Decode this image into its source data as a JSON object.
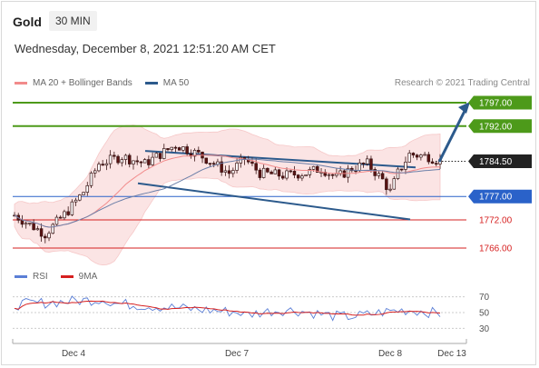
{
  "header": {
    "instrument": "Gold",
    "timeframe": "30 MIN",
    "datetime": "Wednesday, December 8, 2021 12:51:20 AM CET"
  },
  "legend": {
    "main": [
      {
        "label": "MA 20 + Bollinger Bands",
        "color": "#f28b8b"
      },
      {
        "label": "MA 50",
        "color": "#2c5a8c"
      }
    ],
    "rsi": [
      {
        "label": "RSI",
        "color": "#5b7fd6"
      },
      {
        "label": "9MA",
        "color": "#d62020"
      }
    ]
  },
  "credit": "Research © 2021 Trading Central",
  "chart_data": {
    "type": "candlestick",
    "ylim": [
      1760,
      1803
    ],
    "levels": [
      {
        "value": 1797.0,
        "label": "1797.00",
        "kind": "resistance",
        "color": "#4d9a1a",
        "style": "box"
      },
      {
        "value": 1792.0,
        "label": "1792.00",
        "kind": "resistance",
        "color": "#4d9a1a",
        "style": "box"
      },
      {
        "value": 1784.5,
        "label": "1784.50",
        "kind": "last",
        "color": "#222222",
        "style": "box"
      },
      {
        "value": 1777.0,
        "label": "1777.00",
        "kind": "pivot",
        "color": "#2a62c9",
        "style": "box"
      },
      {
        "value": 1772.0,
        "label": "1772.00",
        "kind": "support",
        "color": "#d62020",
        "style": "text"
      },
      {
        "value": 1766.0,
        "label": "1766.00",
        "kind": "support",
        "color": "#d62020",
        "style": "text"
      }
    ],
    "x_ticks": [
      "Dec 4",
      "Dec 7",
      "Dec 8",
      "Dec 13"
    ],
    "rsi": {
      "ylim": [
        20,
        80
      ],
      "ticks": [
        70,
        50,
        30
      ]
    }
  }
}
